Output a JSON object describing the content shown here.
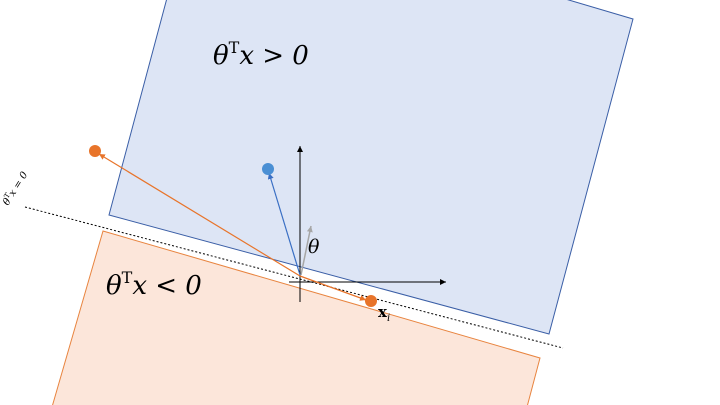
{
  "labels": {
    "positive_region": {
      "base": "θ",
      "sup": "T",
      "rest": "x > 0"
    },
    "negative_region": {
      "base": "θ",
      "sup": "T",
      "rest": "x < 0"
    },
    "boundary": {
      "base": "θ",
      "sup": "T",
      "rest": "x = 0"
    },
    "theta_vector": "θ",
    "point_xi": {
      "base": "x",
      "sub": "i"
    }
  },
  "colors": {
    "positive_fill": "#dde5f5",
    "positive_stroke": "#3a5ea6",
    "negative_fill": "#fce6da",
    "negative_stroke": "#e8843f",
    "blue_point": "#4a8fd4",
    "orange_point": "#e8742a",
    "theta_arrow": "#a6a6a6",
    "axis": "#000000"
  }
}
